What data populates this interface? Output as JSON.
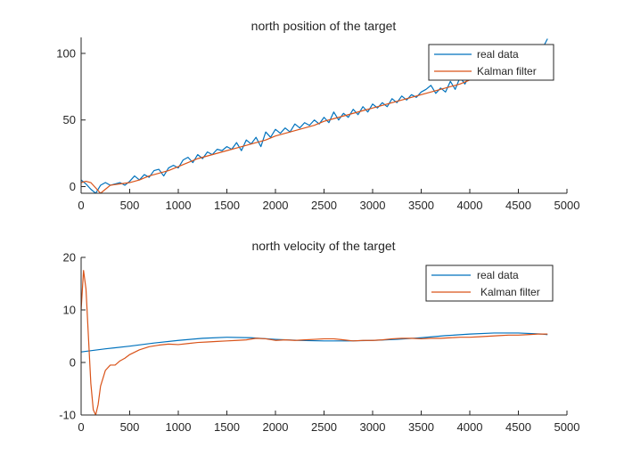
{
  "figure": {
    "background": "#ffffff",
    "series_colors": [
      "#0072bd",
      "#d95319"
    ]
  },
  "chart_data": [
    {
      "type": "line",
      "title": "north position of the target",
      "xlabel": "",
      "ylabel": "",
      "xlim": [
        0,
        5000
      ],
      "ylim": [
        -5,
        112
      ],
      "xticks": [
        0,
        500,
        1000,
        1500,
        2000,
        2500,
        3000,
        3500,
        4000,
        4500,
        5000
      ],
      "yticks": [
        0,
        50,
        100
      ],
      "grid": false,
      "legend": {
        "placement": "top-right",
        "entries": [
          "real data",
          "Kalman filter"
        ]
      },
      "series": [
        {
          "name": "real data",
          "color": "#0072bd",
          "x": [
            0,
            50,
            100,
            150,
            200,
            250,
            300,
            350,
            400,
            450,
            500,
            550,
            600,
            650,
            700,
            750,
            800,
            850,
            900,
            950,
            1000,
            1050,
            1100,
            1150,
            1200,
            1250,
            1300,
            1350,
            1400,
            1450,
            1500,
            1550,
            1600,
            1650,
            1700,
            1750,
            1800,
            1850,
            1900,
            1950,
            2000,
            2050,
            2100,
            2150,
            2200,
            2250,
            2300,
            2350,
            2400,
            2450,
            2500,
            2550,
            2600,
            2650,
            2700,
            2750,
            2800,
            2850,
            2900,
            2950,
            3000,
            3050,
            3100,
            3150,
            3200,
            3250,
            3300,
            3350,
            3400,
            3450,
            3500,
            3550,
            3600,
            3650,
            3700,
            3750,
            3800,
            3850,
            3900,
            3950,
            4000,
            4050,
            4100,
            4150,
            4200,
            4250,
            4300,
            4350,
            4400,
            4450,
            4500,
            4550,
            4600,
            4650,
            4700,
            4750,
            4800
          ],
          "y": [
            5,
            2,
            -2,
            -5,
            1,
            3,
            1,
            2,
            3,
            1,
            4,
            8,
            5,
            9,
            7,
            12,
            13,
            8,
            14,
            16,
            14,
            20,
            22,
            18,
            24,
            21,
            26,
            24,
            28,
            27,
            30,
            28,
            33,
            27,
            35,
            32,
            37,
            30,
            41,
            37,
            43,
            40,
            44,
            41,
            47,
            44,
            48,
            46,
            50,
            47,
            52,
            48,
            56,
            50,
            55,
            52,
            58,
            54,
            60,
            56,
            62,
            59,
            63,
            60,
            66,
            63,
            68,
            65,
            69,
            67,
            71,
            73,
            76,
            70,
            74,
            71,
            79,
            73,
            82,
            77,
            84,
            80,
            86,
            83,
            89,
            86,
            92,
            89,
            94,
            92,
            97,
            95,
            100,
            98,
            103,
            104,
            111
          ]
        },
        {
          "name": "Kalman filter",
          "color": "#d95319",
          "x": [
            0,
            50,
            100,
            150,
            200,
            250,
            300,
            400,
            500,
            600,
            700,
            800,
            900,
            1000,
            1100,
            1200,
            1300,
            1400,
            1500,
            1600,
            1700,
            1800,
            1900,
            2000,
            2100,
            2200,
            2300,
            2400,
            2500,
            2600,
            2700,
            2800,
            2900,
            3000,
            3100,
            3200,
            3300,
            3400,
            3500,
            3600,
            3700,
            3800,
            3900,
            4000,
            4100,
            4200,
            4300,
            4400,
            4500,
            4600,
            4700,
            4800
          ],
          "y": [
            3,
            4,
            3,
            -1,
            -5,
            -2,
            1,
            2,
            3,
            5,
            8,
            10,
            12,
            15,
            18,
            21,
            23,
            25,
            27,
            29,
            31,
            33,
            35,
            38,
            40,
            42,
            44,
            46,
            49,
            51,
            53,
            55,
            57,
            59,
            61,
            63,
            65,
            67,
            69,
            71,
            73,
            75,
            77,
            80,
            82,
            85,
            87,
            90,
            93,
            96,
            100,
            105
          ]
        }
      ]
    },
    {
      "type": "line",
      "title": "north velocity of the target",
      "xlabel": "",
      "ylabel": "",
      "xlim": [
        0,
        5000
      ],
      "ylim": [
        -10,
        20
      ],
      "xticks": [
        0,
        500,
        1000,
        1500,
        2000,
        2500,
        3000,
        3500,
        4000,
        4500,
        5000
      ],
      "yticks": [
        -10,
        0,
        10,
        20
      ],
      "grid": false,
      "legend": {
        "placement": "top-right",
        "entries": [
          "real data",
          "Kalman filter"
        ]
      },
      "series": [
        {
          "name": "real data",
          "color": "#0072bd",
          "x": [
            0,
            250,
            500,
            750,
            1000,
            1250,
            1500,
            1750,
            2000,
            2250,
            2500,
            2750,
            3000,
            3250,
            3500,
            3750,
            4000,
            4250,
            4500,
            4750,
            4800
          ],
          "y": [
            2,
            2.6,
            3.1,
            3.7,
            4.2,
            4.6,
            4.8,
            4.7,
            4.4,
            4.2,
            4.1,
            4.1,
            4.2,
            4.4,
            4.7,
            5.1,
            5.4,
            5.6,
            5.6,
            5.4,
            5.3
          ]
        },
        {
          "name": "Kalman filter",
          "color": "#d95319",
          "x": [
            0,
            25,
            50,
            75,
            100,
            125,
            150,
            175,
            200,
            250,
            300,
            350,
            400,
            450,
            500,
            600,
            700,
            800,
            900,
            1000,
            1100,
            1200,
            1300,
            1400,
            1500,
            1600,
            1700,
            1800,
            1900,
            2000,
            2100,
            2200,
            2300,
            2400,
            2500,
            2600,
            2700,
            2800,
            2900,
            3000,
            3100,
            3200,
            3300,
            3400,
            3500,
            3600,
            3700,
            3800,
            3900,
            4000,
            4100,
            4200,
            4300,
            4400,
            4500,
            4600,
            4700,
            4800
          ],
          "y": [
            10,
            17.5,
            14,
            5,
            -4,
            -9,
            -10,
            -8,
            -4.5,
            -1.5,
            -0.5,
            -0.5,
            0.3,
            0.8,
            1.5,
            2.4,
            3,
            3.3,
            3.5,
            3.4,
            3.6,
            3.8,
            3.9,
            4,
            4.1,
            4.2,
            4.3,
            4.6,
            4.5,
            4.2,
            4.3,
            4.2,
            4.3,
            4.4,
            4.5,
            4.5,
            4.3,
            4.1,
            4.2,
            4.2,
            4.3,
            4.5,
            4.6,
            4.6,
            4.5,
            4.6,
            4.6,
            4.7,
            4.8,
            4.8,
            4.9,
            5,
            5.1,
            5.2,
            5.2,
            5.3,
            5.4,
            5.4
          ]
        }
      ]
    }
  ]
}
